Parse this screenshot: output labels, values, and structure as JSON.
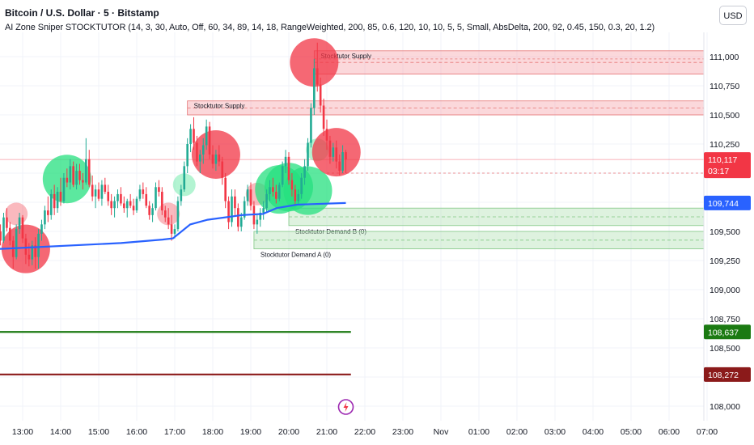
{
  "header": {
    "title": "Bitcoin / U.S. Dollar · 5 · Bitstamp",
    "indicator": "AI Zone Sniper STOCKTUTOR (14, 3, 30, Auto, Off, 60, 34, 89, 14, 18, RangeWeighted, 200, 85, 0.6, 120, 10, 10, 5, 5, Small, AbsDelta, 200, 92, 0.45, 150, 0.3, 20, 1.2)",
    "currency": "USD"
  },
  "colors": {
    "up": "#22ab94",
    "down": "#f23645",
    "vwap": "#2962ff",
    "green_line": "#1b7a12",
    "red_line": "#8b1a1a",
    "supply": "#f7a9b0",
    "demand": "#b6e2b8",
    "blue_tag": "#2962ff"
  },
  "chart_data": {
    "type": "candlestick",
    "symbol": "BTCUSD",
    "interval": "5",
    "x_labels": [
      "13:00",
      "14:00",
      "15:00",
      "16:00",
      "17:00",
      "18:00",
      "19:00",
      "20:00",
      "21:00",
      "22:00",
      "23:00",
      "Nov",
      "01:00",
      "02:00",
      "03:00",
      "04:00",
      "05:00",
      "06:00",
      "07:00"
    ],
    "y_ticks": [
      108000,
      108250,
      108500,
      108750,
      109000,
      109250,
      109500,
      109750,
      110000,
      110250,
      110500,
      110750,
      111000
    ],
    "y_tick_labels": [
      "108,000",
      "108,250",
      "108,500",
      "108,750",
      "109,000",
      "109,250",
      "109,500",
      "109,750",
      "110,000",
      "110,250",
      "110,500",
      "110,750",
      "111,000"
    ],
    "y_range": [
      107950,
      111250
    ],
    "price_tags": [
      {
        "value": 110117,
        "label": "110,117",
        "sub": "03:17",
        "kind": "last"
      },
      {
        "value": 109744,
        "label": "109,744",
        "kind": "vwap"
      },
      {
        "value": 108637,
        "label": "108,637",
        "kind": "green"
      },
      {
        "value": 108272,
        "label": "108,272",
        "kind": "red"
      }
    ],
    "horizontal_lines": [
      {
        "value": 108637,
        "kind": "green",
        "from": "12:25",
        "to": "21:38"
      },
      {
        "value": 108272,
        "kind": "red",
        "from": "12:25",
        "to": "21:38"
      }
    ],
    "zones": [
      {
        "kind": "supply",
        "label": "Stocktutor Supply",
        "top": 111050,
        "bottom": 110850,
        "from": "20:40"
      },
      {
        "kind": "supply",
        "label": "Stocktutor Supply",
        "top": 110620,
        "bottom": 110500,
        "from": "17:20"
      },
      {
        "kind": "demand",
        "label": "Stocktutor Demand B (0)",
        "top": 109700,
        "bottom": 109550,
        "from": "20:00"
      },
      {
        "kind": "demand",
        "label": "Stocktutor Demand A (0)",
        "top": 109500,
        "bottom": 109350,
        "from": "19:05"
      }
    ],
    "candles": [
      [
        "12:25",
        109500,
        109560,
        109380,
        109420
      ],
      [
        "12:30",
        109420,
        109660,
        109400,
        109620
      ],
      [
        "12:35",
        109620,
        109700,
        109500,
        109530
      ],
      [
        "12:40",
        109530,
        109580,
        109380,
        109420
      ],
      [
        "12:45",
        109420,
        109460,
        109180,
        109280
      ],
      [
        "12:50",
        109280,
        109560,
        109260,
        109520
      ],
      [
        "12:55",
        109520,
        109660,
        109480,
        109620
      ],
      [
        "13:00",
        109620,
        109640,
        109400,
        109440
      ],
      [
        "13:05",
        109440,
        109480,
        109220,
        109300
      ],
      [
        "13:10",
        109300,
        109400,
        109200,
        109260
      ],
      [
        "13:15",
        109260,
        109420,
        109210,
        109380
      ],
      [
        "13:20",
        109380,
        109450,
        109180,
        109280
      ],
      [
        "13:25",
        109280,
        109520,
        109180,
        109480
      ],
      [
        "13:30",
        109480,
        109600,
        109420,
        109560
      ],
      [
        "13:35",
        109560,
        109720,
        109520,
        109680
      ],
      [
        "13:40",
        109680,
        109800,
        109580,
        109640
      ],
      [
        "13:45",
        109640,
        109860,
        109600,
        109820
      ],
      [
        "13:50",
        109820,
        109900,
        109640,
        109700
      ],
      [
        "13:55",
        109700,
        109880,
        109660,
        109840
      ],
      [
        "14:00",
        109840,
        109960,
        109720,
        109760
      ],
      [
        "14:05",
        109760,
        110000,
        109740,
        109960
      ],
      [
        "14:10",
        109960,
        110040,
        109880,
        109920
      ],
      [
        "14:15",
        109920,
        110120,
        109860,
        110060
      ],
      [
        "14:20",
        110060,
        110100,
        109880,
        109900
      ],
      [
        "14:25",
        109900,
        110080,
        109860,
        110020
      ],
      [
        "14:30",
        110020,
        110080,
        109900,
        109940
      ],
      [
        "14:35",
        109940,
        110000,
        109860,
        109920
      ],
      [
        "14:40",
        109920,
        110300,
        109900,
        110120
      ],
      [
        "14:45",
        110120,
        110200,
        109880,
        109900
      ],
      [
        "14:50",
        109900,
        109980,
        109760,
        109800
      ],
      [
        "14:55",
        109800,
        109900,
        109700,
        109860
      ],
      [
        "15:00",
        109860,
        109920,
        109760,
        109780
      ],
      [
        "15:05",
        109780,
        109940,
        109720,
        109900
      ],
      [
        "15:10",
        109900,
        109960,
        109820,
        109840
      ],
      [
        "15:15",
        109840,
        109900,
        109720,
        109760
      ],
      [
        "15:20",
        109760,
        109820,
        109640,
        109700
      ],
      [
        "15:25",
        109700,
        109800,
        109620,
        109760
      ],
      [
        "15:30",
        109760,
        109860,
        109700,
        109820
      ],
      [
        "15:35",
        109820,
        109880,
        109720,
        109740
      ],
      [
        "15:40",
        109740,
        109800,
        109660,
        109700
      ],
      [
        "15:45",
        109700,
        109780,
        109620,
        109760
      ],
      [
        "15:50",
        109760,
        109820,
        109700,
        109720
      ],
      [
        "15:55",
        109720,
        109780,
        109640,
        109680
      ],
      [
        "16:00",
        109680,
        109800,
        109660,
        109780
      ],
      [
        "16:05",
        109780,
        109900,
        109760,
        109860
      ],
      [
        "16:10",
        109860,
        109920,
        109780,
        109820
      ],
      [
        "16:15",
        109820,
        109880,
        109700,
        109720
      ],
      [
        "16:20",
        109720,
        109760,
        109600,
        109640
      ],
      [
        "16:25",
        109640,
        109740,
        109580,
        109700
      ],
      [
        "16:30",
        109700,
        109920,
        109680,
        109880
      ],
      [
        "16:35",
        109880,
        109940,
        109800,
        109840
      ],
      [
        "16:40",
        109840,
        109880,
        109640,
        109680
      ],
      [
        "16:45",
        109680,
        109720,
        109580,
        109620
      ],
      [
        "16:50",
        109620,
        109700,
        109520,
        109560
      ],
      [
        "16:55",
        109560,
        109640,
        109420,
        109480
      ],
      [
        "17:00",
        109480,
        109560,
        109440,
        109520
      ],
      [
        "17:05",
        109520,
        109800,
        109500,
        109760
      ],
      [
        "17:10",
        109760,
        109900,
        109720,
        109860
      ],
      [
        "17:15",
        109860,
        110100,
        109840,
        110060
      ],
      [
        "17:20",
        110060,
        110300,
        110000,
        110250
      ],
      [
        "17:25",
        110250,
        110420,
        110180,
        110380
      ],
      [
        "17:30",
        110380,
        110480,
        110200,
        110260
      ],
      [
        "17:35",
        110260,
        110320,
        110060,
        110100
      ],
      [
        "17:40",
        110100,
        110200,
        110000,
        110160
      ],
      [
        "17:45",
        110160,
        110300,
        110080,
        110240
      ],
      [
        "17:50",
        110240,
        110460,
        110200,
        110400
      ],
      [
        "17:55",
        110400,
        110440,
        110120,
        110160
      ],
      [
        "18:00",
        110160,
        110240,
        110040,
        110080
      ],
      [
        "18:05",
        110080,
        110200,
        110020,
        110160
      ],
      [
        "18:10",
        110160,
        110240,
        110060,
        110100
      ],
      [
        "18:15",
        110100,
        110140,
        109900,
        109960
      ],
      [
        "18:20",
        109960,
        110000,
        109700,
        109760
      ],
      [
        "18:25",
        109760,
        109800,
        109520,
        109580
      ],
      [
        "18:30",
        109580,
        109860,
        109540,
        109800
      ],
      [
        "18:35",
        109800,
        109860,
        109640,
        109700
      ],
      [
        "18:40",
        109700,
        109740,
        109500,
        109540
      ],
      [
        "18:45",
        109540,
        109660,
        109500,
        109620
      ],
      [
        "18:50",
        109620,
        109800,
        109600,
        109760
      ],
      [
        "18:55",
        109760,
        109900,
        109720,
        109860
      ],
      [
        "19:00",
        109860,
        109920,
        109680,
        109720
      ],
      [
        "19:05",
        109720,
        109760,
        109520,
        109560
      ],
      [
        "19:10",
        109560,
        109640,
        109480,
        109600
      ],
      [
        "19:15",
        109600,
        109700,
        109540,
        109660
      ],
      [
        "19:20",
        109660,
        109760,
        109600,
        109700
      ],
      [
        "19:25",
        109700,
        109860,
        109660,
        109820
      ],
      [
        "19:30",
        109820,
        109940,
        109760,
        109880
      ],
      [
        "19:35",
        109880,
        109960,
        109800,
        109840
      ],
      [
        "19:40",
        109840,
        109900,
        109740,
        109780
      ],
      [
        "19:45",
        109780,
        109920,
        109760,
        109900
      ],
      [
        "19:50",
        109900,
        110100,
        109880,
        110060
      ],
      [
        "19:55",
        110060,
        110200,
        110000,
        110140
      ],
      [
        "20:00",
        110140,
        110180,
        109900,
        109940
      ],
      [
        "20:05",
        109940,
        110000,
        109800,
        109860
      ],
      [
        "20:10",
        109860,
        109900,
        109720,
        109760
      ],
      [
        "20:15",
        109760,
        109860,
        109740,
        109820
      ],
      [
        "20:20",
        109820,
        110000,
        109780,
        109960
      ],
      [
        "20:25",
        109960,
        110120,
        109900,
        110060
      ],
      [
        "20:30",
        110060,
        110300,
        110020,
        110260
      ],
      [
        "20:35",
        110260,
        110600,
        110220,
        110560
      ],
      [
        "20:40",
        110560,
        110980,
        110500,
        110900
      ],
      [
        "20:45",
        110900,
        111120,
        110700,
        110760
      ],
      [
        "20:50",
        110760,
        110820,
        110520,
        110580
      ],
      [
        "20:55",
        110580,
        110640,
        110320,
        110380
      ],
      [
        "21:00",
        110380,
        110460,
        110200,
        110280
      ],
      [
        "21:05",
        110280,
        110320,
        110080,
        110140
      ],
      [
        "21:10",
        110140,
        110260,
        110100,
        110220
      ],
      [
        "21:15",
        110220,
        110280,
        110040,
        110100
      ],
      [
        "21:20",
        110100,
        110160,
        109980,
        110020
      ],
      [
        "21:25",
        110020,
        110240,
        110000,
        110180
      ],
      [
        "21:30",
        110180,
        110200,
        110000,
        110117
      ]
    ],
    "vwap": [
      [
        0,
        109350
      ],
      [
        0.35,
        109400
      ],
      [
        0.47,
        109430
      ],
      [
        0.5,
        109440
      ],
      [
        0.55,
        109560
      ],
      [
        0.6,
        109600
      ],
      [
        0.7,
        109640
      ],
      [
        0.76,
        109650
      ],
      [
        0.8,
        109700
      ],
      [
        0.86,
        109730
      ],
      [
        1,
        109744
      ]
    ],
    "signals": [
      {
        "t": "12:50",
        "v": 109650,
        "kind": "sell",
        "size": "small"
      },
      {
        "t": "13:05",
        "v": 109350,
        "kind": "sell",
        "size": "large"
      },
      {
        "t": "14:10",
        "v": 109950,
        "kind": "buy",
        "size": "large"
      },
      {
        "t": "16:50",
        "v": 109650,
        "kind": "sell",
        "size": "small"
      },
      {
        "t": "17:15",
        "v": 109900,
        "kind": "buy",
        "size": "small"
      },
      {
        "t": "18:05",
        "v": 110160,
        "kind": "sell",
        "size": "large"
      },
      {
        "t": "19:10",
        "v": 109820,
        "kind": "sell",
        "size": "small"
      },
      {
        "t": "19:45",
        "v": 109860,
        "kind": "buy",
        "size": "large"
      },
      {
        "t": "20:00",
        "v": 109880,
        "kind": "buy",
        "size": "large"
      },
      {
        "t": "20:30",
        "v": 109850,
        "kind": "buy",
        "size": "large"
      },
      {
        "t": "20:40",
        "v": 110950,
        "kind": "sell",
        "size": "large"
      },
      {
        "t": "20:45",
        "v": 110200,
        "kind": "buy",
        "size": "small"
      },
      {
        "t": "21:15",
        "v": 110180,
        "kind": "sell",
        "size": "large"
      }
    ]
  }
}
